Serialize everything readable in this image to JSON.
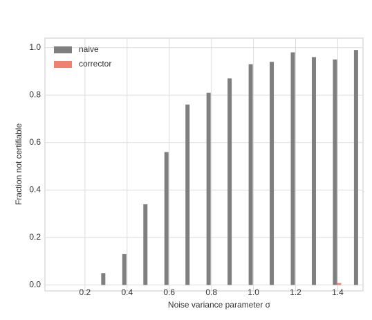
{
  "chart_data": {
    "type": "bar",
    "xlabel": "Noise variance parameter σ",
    "ylabel": "Fraction not certifiable",
    "x": [
      0.1,
      0.2,
      0.3,
      0.4,
      0.5,
      0.6,
      0.7,
      0.8,
      0.9,
      1.0,
      1.1,
      1.2,
      1.3,
      1.4,
      1.5
    ],
    "series": [
      {
        "name": "naive",
        "color": "#7f7f7f",
        "values": [
          0,
          0,
          0.05,
          0.13,
          0.34,
          0.56,
          0.76,
          0.81,
          0.87,
          0.93,
          0.94,
          0.98,
          0.96,
          0.95,
          0.99
        ]
      },
      {
        "name": "corrector",
        "color": "#f08070",
        "values": [
          0,
          0,
          0,
          0,
          0,
          0,
          0,
          0,
          0,
          0,
          0,
          0,
          0,
          0.008,
          0
        ]
      }
    ],
    "xlim": [
      0.01,
      1.52
    ],
    "ylim": [
      -0.025,
      1.04
    ],
    "xticks": [
      0.2,
      0.4,
      0.6,
      0.8,
      {
        "value": 1.0,
        "label": "1.0"
      },
      1.2,
      1.4
    ],
    "yticks": [
      {
        "value": 0.0,
        "label": "0.0"
      },
      0.2,
      0.4,
      0.6,
      0.8,
      {
        "value": 1.0,
        "label": "1.0"
      }
    ],
    "grid": true,
    "legend": "upper-left"
  }
}
